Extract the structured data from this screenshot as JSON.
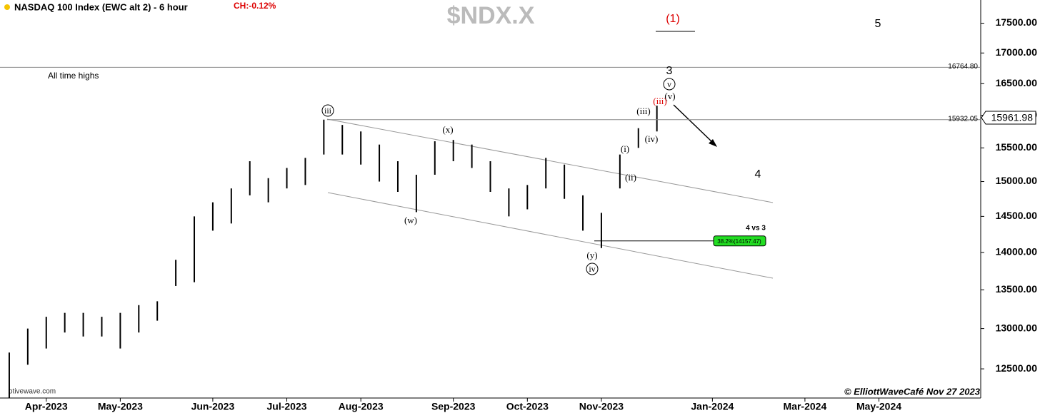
{
  "chart_data": {
    "type": "ohlc",
    "title": "NASDAQ 100 Index (EWC alt 2) - 6 hour",
    "change_label": "CH:-0.12%",
    "watermark": "$NDX.X",
    "note": "All time highs",
    "copyright": "© ElliottWaveCafé Nov 27 2023",
    "source": "otivewave.com",
    "log_scale": true,
    "color": "#000000",
    "categories": [
      null,
      null,
      "Apr-2023",
      null,
      null,
      null,
      "May-2023",
      null,
      null,
      null,
      null,
      "Jun-2023",
      null,
      null,
      null,
      "Jul-2023",
      null,
      null,
      null,
      "Aug-2023",
      null,
      null,
      null,
      null,
      "Sep-2023",
      null,
      null,
      null,
      "Oct-2023",
      null,
      null,
      null,
      "Nov-2023",
      null,
      null,
      null,
      null,
      null,
      "Jan-2024",
      null,
      null,
      null,
      null,
      "Mar-2024",
      null,
      null,
      null,
      "May-2024",
      null,
      null,
      null,
      null,
      null
    ],
    "high": [
      12700,
      13000,
      13150,
      13200,
      13200,
      13150,
      13200,
      13300,
      13350,
      13900,
      14500,
      14700,
      14900,
      15300,
      15050,
      15200,
      15350,
      15932,
      15850,
      15750,
      15550,
      15300,
      15100,
      15600,
      15620,
      15550,
      15300,
      14900,
      14950,
      15350,
      15250,
      14800,
      14550,
      15400,
      15800,
      16150,
      null,
      null,
      null,
      null,
      null,
      null,
      null,
      null,
      null,
      null,
      null,
      null,
      null,
      null,
      null,
      null,
      null
    ],
    "low": [
      12150,
      12550,
      12750,
      12950,
      12900,
      12900,
      12750,
      12950,
      13100,
      13550,
      13600,
      14300,
      14400,
      14800,
      14700,
      14900,
      14950,
      15400,
      15400,
      15250,
      15000,
      14850,
      14560,
      15100,
      15300,
      15200,
      14850,
      14500,
      14600,
      14900,
      14750,
      14300,
      14060,
      14900,
      15500,
      15750,
      null,
      null,
      null,
      null,
      null,
      null,
      null,
      null,
      null,
      null,
      null,
      null,
      null,
      null,
      null,
      null,
      null
    ],
    "ylim": [
      12150,
      17900
    ],
    "yticks": [
      {
        "value": 12500,
        "label": "12500.00"
      },
      {
        "value": 13000,
        "label": "13000.00"
      },
      {
        "value": 13500,
        "label": "13500.00"
      },
      {
        "value": 14000,
        "label": "14000.00"
      },
      {
        "value": 14500,
        "label": "14500.00"
      },
      {
        "value": 15000,
        "label": "15000.00"
      },
      {
        "value": 15500,
        "label": "15500.00"
      },
      {
        "value": 16000,
        "label": "16000.00"
      },
      {
        "value": 16500,
        "label": "16500.00"
      },
      {
        "value": 17000,
        "label": "17000.00"
      },
      {
        "value": 17500,
        "label": "17500.00"
      }
    ],
    "reference_lines": [
      {
        "value": 16764.8,
        "label": "16764.80"
      },
      {
        "value": 15932.05,
        "label": "15932.05"
      }
    ],
    "last_price": {
      "value": 15961.98,
      "label": "15961.98"
    },
    "fib_level": {
      "value": 14157.47,
      "label": "38.2%(14157.47)"
    },
    "annotations": [
      "(1)",
      "5",
      "3",
      "v",
      "(v)",
      "(iii)",
      "(iii)",
      "(iv)",
      "(i)",
      "(ii)",
      "4",
      "iii",
      "(x)",
      "(w)",
      "(y)",
      "iv",
      "4 vs 3"
    ]
  }
}
